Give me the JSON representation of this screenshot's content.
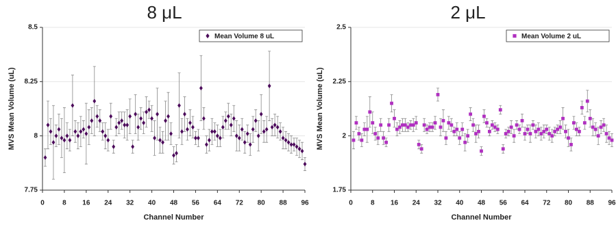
{
  "chart_data": [
    {
      "type": "scatter",
      "title": "8 μL",
      "xlabel": "Channel Number",
      "ylabel": "MVS Mean Volume (uL)",
      "x": [
        1,
        2,
        3,
        4,
        5,
        6,
        7,
        8,
        9,
        10,
        11,
        12,
        13,
        14,
        15,
        16,
        17,
        18,
        19,
        20,
        21,
        22,
        23,
        24,
        25,
        26,
        27,
        28,
        29,
        30,
        31,
        32,
        33,
        34,
        35,
        36,
        37,
        38,
        39,
        40,
        41,
        42,
        43,
        44,
        45,
        46,
        47,
        48,
        49,
        50,
        51,
        52,
        53,
        54,
        55,
        56,
        57,
        58,
        59,
        60,
        61,
        62,
        63,
        64,
        65,
        66,
        67,
        68,
        69,
        70,
        71,
        72,
        73,
        74,
        75,
        76,
        77,
        78,
        79,
        80,
        81,
        82,
        83,
        84,
        85,
        86,
        87,
        88,
        89,
        90,
        91,
        92,
        93,
        94,
        95,
        96
      ],
      "series": [
        {
          "name": "Mean Volume 8 uL",
          "color": "#4b0a5a",
          "marker": "diamond",
          "values": [
            7.9,
            8.05,
            8.02,
            7.97,
            8.0,
            8.03,
            7.99,
            7.98,
            8.0,
            7.98,
            8.14,
            8.02,
            8.0,
            8.02,
            8.03,
            8.01,
            8.04,
            8.07,
            8.16,
            8.09,
            8.07,
            8.02,
            8.0,
            7.98,
            8.09,
            7.95,
            8.04,
            8.06,
            8.07,
            8.05,
            8.05,
            8.09,
            7.95,
            8.1,
            8.04,
            8.08,
            8.06,
            8.11,
            8.12,
            8.08,
            7.99,
            8.1,
            7.98,
            7.97,
            8.07,
            8.09,
            8.01,
            7.91,
            7.92,
            8.14,
            8.02,
            8.1,
            8.03,
            8.06,
            8.04,
            7.99,
            7.99,
            8.22,
            8.08,
            7.96,
            7.98,
            8.02,
            8.02,
            8.0,
            7.99,
            8.04,
            8.07,
            8.09,
            8.05,
            8.08,
            8.0,
            7.99,
            8.03,
            7.97,
            8.01,
            7.96,
            8.03,
            8.07,
            8.0,
            8.1,
            8.02,
            8.03,
            8.23,
            8.04,
            8.05,
            8.04,
            8.02,
            7.99,
            7.98,
            7.97,
            7.96,
            7.96,
            7.95,
            7.94,
            7.93,
            7.87
          ],
          "errors": [
            0.04,
            0.11,
            0.06,
            0.17,
            0.05,
            0.07,
            0.09,
            0.15,
            0.06,
            0.05,
            0.14,
            0.05,
            0.06,
            0.07,
            0.04,
            0.14,
            0.08,
            0.06,
            0.16,
            0.05,
            0.05,
            0.04,
            0.06,
            0.05,
            0.06,
            0.03,
            0.04,
            0.05,
            0.04,
            0.06,
            0.07,
            0.08,
            0.03,
            0.09,
            0.06,
            0.05,
            0.05,
            0.07,
            0.04,
            0.06,
            0.08,
            0.12,
            0.06,
            0.05,
            0.09,
            0.11,
            0.05,
            0.04,
            0.04,
            0.15,
            0.06,
            0.08,
            0.05,
            0.06,
            0.05,
            0.03,
            0.04,
            0.15,
            0.05,
            0.04,
            0.05,
            0.06,
            0.04,
            0.05,
            0.04,
            0.05,
            0.04,
            0.06,
            0.05,
            0.06,
            0.07,
            0.06,
            0.05,
            0.05,
            0.04,
            0.05,
            0.06,
            0.05,
            0.07,
            0.09,
            0.05,
            0.06,
            0.16,
            0.04,
            0.05,
            0.05,
            0.04,
            0.05,
            0.04,
            0.04,
            0.04,
            0.03,
            0.04,
            0.04,
            0.04,
            0.03
          ]
        }
      ],
      "xlim": [
        0,
        96
      ],
      "xticks": [
        0,
        8,
        16,
        24,
        32,
        40,
        48,
        56,
        64,
        72,
        80,
        88,
        96
      ],
      "ylim": [
        7.75,
        8.5
      ],
      "yticks": [
        7.75,
        8,
        8.25,
        8.5
      ],
      "grid": true,
      "legend": "top right"
    },
    {
      "type": "scatter",
      "title": "2 μL",
      "xlabel": "Channel Number",
      "ylabel": "MVS Mean Volume (uL)",
      "x": [
        1,
        2,
        3,
        4,
        5,
        6,
        7,
        8,
        9,
        10,
        11,
        12,
        13,
        14,
        15,
        16,
        17,
        18,
        19,
        20,
        21,
        22,
        23,
        24,
        25,
        26,
        27,
        28,
        29,
        30,
        31,
        32,
        33,
        34,
        35,
        36,
        37,
        38,
        39,
        40,
        41,
        42,
        43,
        44,
        45,
        46,
        47,
        48,
        49,
        50,
        51,
        52,
        53,
        54,
        55,
        56,
        57,
        58,
        59,
        60,
        61,
        62,
        63,
        64,
        65,
        66,
        67,
        68,
        69,
        70,
        71,
        72,
        73,
        74,
        75,
        76,
        77,
        78,
        79,
        80,
        81,
        82,
        83,
        84,
        85,
        86,
        87,
        88,
        89,
        90,
        91,
        92,
        93,
        94,
        95,
        96
      ],
      "series": [
        {
          "name": "Mean Volume 2 uL",
          "color": "#b030c0",
          "marker": "square",
          "values": [
            1.98,
            2.06,
            2.01,
            1.98,
            2.03,
            2.03,
            2.11,
            2.06,
            2.01,
            1.99,
            2.05,
            1.99,
            1.97,
            2.05,
            2.15,
            2.08,
            2.03,
            2.04,
            2.05,
            2.05,
            2.04,
            2.05,
            2.05,
            2.06,
            1.96,
            1.94,
            2.05,
            2.03,
            2.04,
            2.04,
            2.06,
            2.19,
            2.04,
            2.07,
            1.99,
            2.06,
            2.05,
            2.02,
            2.03,
            1.99,
            2.03,
            1.97,
            2.0,
            2.1,
            2.05,
            2.01,
            2.02,
            1.93,
            2.09,
            2.06,
            2.02,
            2.05,
            2.04,
            2.03,
            2.12,
            1.94,
            2.01,
            2.02,
            2.04,
            2.0,
            2.05,
            2.03,
            2.07,
            2.01,
            2.03,
            2.01,
            2.05,
            2.02,
            2.03,
            2.01,
            2.02,
            2.03,
            2.01,
            2.0,
            2.02,
            2.03,
            2.04,
            2.08,
            2.02,
            1.99,
            1.96,
            2.06,
            2.03,
            2.02,
            2.13,
            2.06,
            2.16,
            2.08,
            2.04,
            2.03,
            2.0,
            2.04,
            2.05,
            2.01,
            1.99,
            1.98
          ],
          "errors": [
            0.04,
            0.03,
            0.03,
            0.03,
            0.03,
            0.06,
            0.07,
            0.05,
            0.03,
            0.03,
            0.03,
            0.03,
            0.02,
            0.03,
            0.04,
            0.04,
            0.03,
            0.03,
            0.03,
            0.03,
            0.02,
            0.02,
            0.03,
            0.03,
            0.02,
            0.02,
            0.03,
            0.02,
            0.02,
            0.02,
            0.03,
            0.03,
            0.04,
            0.05,
            0.03,
            0.03,
            0.03,
            0.02,
            0.03,
            0.03,
            0.03,
            0.04,
            0.03,
            0.03,
            0.03,
            0.04,
            0.03,
            0.02,
            0.03,
            0.02,
            0.02,
            0.02,
            0.02,
            0.02,
            0.02,
            0.02,
            0.02,
            0.02,
            0.03,
            0.03,
            0.02,
            0.02,
            0.03,
            0.03,
            0.02,
            0.04,
            0.02,
            0.03,
            0.03,
            0.03,
            0.03,
            0.02,
            0.03,
            0.03,
            0.02,
            0.02,
            0.03,
            0.05,
            0.03,
            0.04,
            0.03,
            0.03,
            0.03,
            0.02,
            0.03,
            0.03,
            0.05,
            0.04,
            0.04,
            0.03,
            0.04,
            0.03,
            0.03,
            0.04,
            0.03,
            0.03
          ]
        }
      ],
      "xlim": [
        0,
        96
      ],
      "xticks": [
        0,
        8,
        16,
        24,
        32,
        40,
        48,
        56,
        64,
        72,
        80,
        88,
        96
      ],
      "ylim": [
        1.75,
        2.5
      ],
      "yticks": [
        1.75,
        2,
        2.25,
        2.5
      ],
      "grid": true,
      "legend": "top right"
    }
  ]
}
